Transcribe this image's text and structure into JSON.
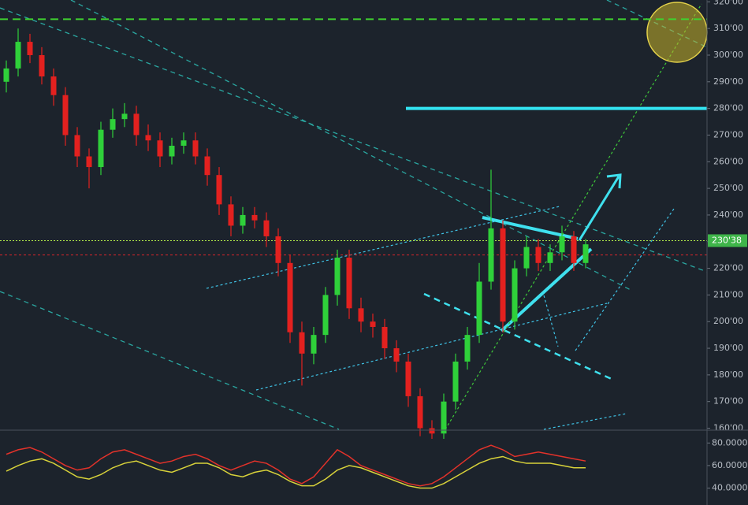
{
  "chart_data": {
    "type": "candlestick",
    "ylim": [
      159.56,
      320.69
    ],
    "yticks": [
      {
        "value": 160,
        "label": "160'00"
      },
      {
        "value": 170,
        "label": "170'00"
      },
      {
        "value": 180,
        "label": "180'00"
      },
      {
        "value": 190,
        "label": "190'00"
      },
      {
        "value": 200,
        "label": "200'00"
      },
      {
        "value": 210,
        "label": "210'00"
      },
      {
        "value": 220,
        "label": "220'00"
      },
      {
        "value": 230,
        "label": "230'00"
      },
      {
        "value": 240,
        "label": "240'00"
      },
      {
        "value": 250,
        "label": "250'00"
      },
      {
        "value": 260,
        "label": "260'00"
      },
      {
        "value": 270,
        "label": "270'00"
      },
      {
        "value": 280,
        "label": "280'00"
      },
      {
        "value": 290,
        "label": "290'00"
      },
      {
        "value": 300,
        "label": "300'00"
      },
      {
        "value": 310,
        "label": "310'00"
      },
      {
        "value": 320,
        "label": "320'00"
      }
    ],
    "up_color": "#2fd03a",
    "down_color": "#e3211f",
    "open": [
      290,
      295,
      305,
      300,
      292,
      285,
      270,
      262,
      258,
      272,
      276,
      278,
      270,
      268,
      262,
      266,
      268,
      262,
      255,
      244,
      236,
      240,
      238,
      232,
      222,
      196,
      188,
      195,
      210,
      224,
      205,
      200,
      198,
      190,
      185,
      172,
      160,
      158,
      170,
      185,
      195,
      215,
      235,
      200,
      220,
      228,
      222,
      226,
      232,
      222
    ],
    "high": [
      298,
      310,
      308,
      303,
      295,
      288,
      273,
      265,
      275,
      280,
      282,
      281,
      274,
      271,
      269,
      271,
      271,
      265,
      258,
      247,
      243,
      243,
      241,
      235,
      225,
      200,
      198,
      213,
      227,
      227,
      209,
      203,
      201,
      193,
      188,
      175,
      163,
      173,
      188,
      198,
      222,
      257,
      238,
      223,
      232,
      231,
      229,
      236,
      234,
      231
    ],
    "low": [
      286,
      292,
      297,
      289,
      281,
      266,
      258,
      250,
      255,
      269,
      273,
      266,
      264,
      258,
      259,
      263,
      259,
      251,
      240,
      232,
      233,
      235,
      228,
      217,
      192,
      176,
      184,
      192,
      206,
      201,
      196,
      194,
      186,
      181,
      168,
      157,
      156,
      156,
      167,
      182,
      192,
      212,
      196,
      197,
      217,
      219,
      219,
      223,
      219,
      220
    ],
    "close": [
      295,
      305,
      300,
      292,
      285,
      270,
      262,
      258,
      272,
      276,
      278,
      270,
      268,
      262,
      266,
      268,
      262,
      255,
      244,
      236,
      240,
      238,
      232,
      222,
      196,
      188,
      195,
      210,
      224,
      205,
      200,
      198,
      190,
      185,
      172,
      160,
      158,
      170,
      185,
      195,
      215,
      235,
      200,
      220,
      228,
      222,
      226,
      232,
      222,
      229
    ],
    "levels": [
      {
        "value": 313.5,
        "color": "#3fd22f"
      },
      {
        "value": 280,
        "color": "#33e4f2"
      },
      {
        "value": 225,
        "color": "#d6262a"
      }
    ],
    "last_price": {
      "value": 230.38,
      "label": "230'38",
      "color": "#b5f04a"
    },
    "oscillator": {
      "ylim": [
        25,
        90
      ],
      "yticks": [
        {
          "value": 40,
          "label": "40.0000"
        },
        {
          "value": 60,
          "label": "60.0000"
        },
        {
          "value": 80,
          "label": "80.0000"
        }
      ],
      "series": [
        {
          "color": "#e3322a",
          "values": [
            70,
            74,
            76,
            72,
            66,
            60,
            56,
            58,
            66,
            72,
            74,
            70,
            66,
            62,
            64,
            68,
            70,
            66,
            60,
            56,
            60,
            64,
            62,
            56,
            48,
            44,
            50,
            62,
            74,
            68,
            60,
            56,
            52,
            48,
            44,
            42,
            44,
            50,
            58,
            66,
            74,
            78,
            74,
            68,
            70,
            72,
            70,
            68,
            66,
            64
          ]
        },
        {
          "color": "#d8d23a",
          "values": [
            55,
            60,
            64,
            66,
            62,
            56,
            50,
            48,
            52,
            58,
            62,
            64,
            60,
            56,
            54,
            58,
            62,
            62,
            58,
            52,
            50,
            54,
            56,
            52,
            46,
            42,
            42,
            48,
            56,
            60,
            58,
            54,
            50,
            46,
            42,
            40,
            40,
            44,
            50,
            56,
            62,
            66,
            68,
            64,
            62,
            62,
            62,
            60,
            58,
            58
          ]
        }
      ]
    }
  }
}
